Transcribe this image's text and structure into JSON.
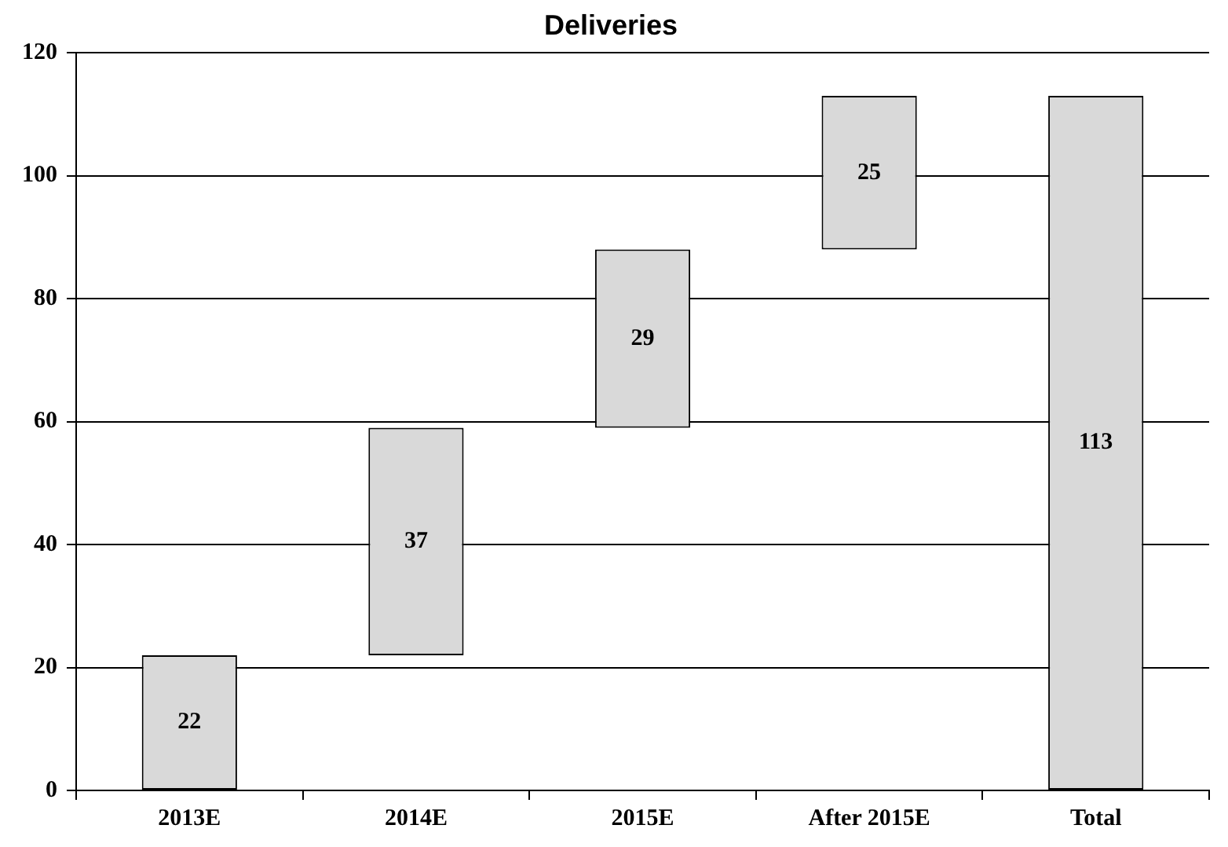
{
  "chart_data": {
    "type": "bar",
    "title": "Deliveries",
    "categories": [
      "2013E",
      "2014E",
      "2015E",
      "After 2015E",
      "Total"
    ],
    "values": [
      22,
      37,
      29,
      25,
      113
    ],
    "base": [
      0,
      22,
      59,
      88,
      0
    ],
    "color": "#d9d9d9",
    "ylim": [
      0,
      120
    ],
    "yticks": [
      0,
      20,
      40,
      60,
      80,
      100,
      120
    ],
    "grid": "y",
    "data_labels": true
  }
}
